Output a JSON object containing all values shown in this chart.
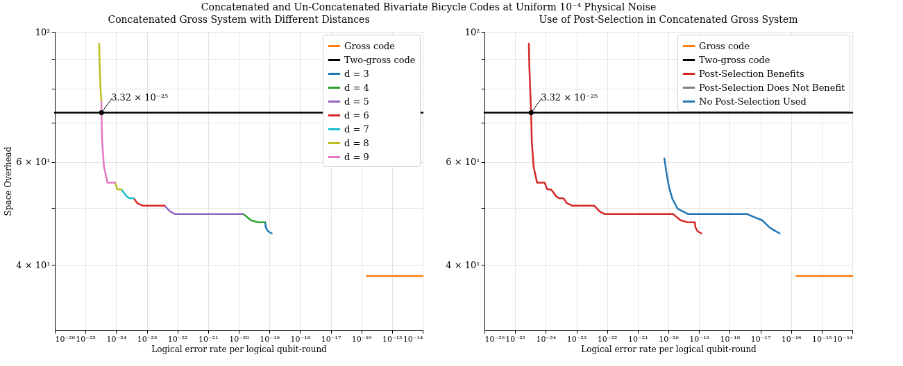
{
  "chart_data": [
    {
      "type": "line",
      "title": "Concatenated Gross System with Different Distances",
      "xlabel": "Logical error rate per logical qubit-round",
      "ylabel": "Space Overhead",
      "log": "xy",
      "grid": true,
      "legend": "top right",
      "xlim": [
        1e-26,
        1e-14
      ],
      "ylim": [
        31,
        100
      ],
      "xticks": [
        {
          "value": 1e-26,
          "label": "10⁻²⁶"
        },
        {
          "value": 1e-25,
          "label": "10⁻²⁵"
        },
        {
          "value": 1e-24,
          "label": "10⁻²⁴"
        },
        {
          "value": 1e-23,
          "label": "10⁻²³"
        },
        {
          "value": 1e-22,
          "label": "10⁻²²"
        },
        {
          "value": 1e-21,
          "label": "10⁻²¹"
        },
        {
          "value": 1e-20,
          "label": "10⁻²⁰"
        },
        {
          "value": 1e-19,
          "label": "10⁻¹⁹"
        },
        {
          "value": 1e-18,
          "label": "10⁻¹⁸"
        },
        {
          "value": 1e-17,
          "label": "10⁻¹⁷"
        },
        {
          "value": 1e-16,
          "label": "10⁻¹⁶"
        },
        {
          "value": 1e-15,
          "label": "10⁻¹⁵"
        },
        {
          "value": 1e-14,
          "label": "10⁻¹⁴"
        }
      ],
      "yticks": [
        {
          "value": 40,
          "label": "4 × 10¹"
        },
        {
          "value": 50,
          "label": null
        },
        {
          "value": 60,
          "label": "6 × 10¹"
        },
        {
          "value": 70,
          "label": null
        },
        {
          "value": 80,
          "label": null
        },
        {
          "value": 90,
          "label": null
        },
        {
          "value": 100,
          "label": "10²"
        }
      ],
      "series": [
        {
          "name": "Gross code",
          "color": "#ff7f0e",
          "x": [
            1.5e-16,
            1e-14
          ],
          "values": [
            38.3,
            38.3
          ]
        },
        {
          "name": "Two-gross code",
          "color": "#000000",
          "x": [
            1e-26,
            1e-14
          ],
          "values": [
            72.8,
            72.8
          ]
        },
        {
          "name": "d = 3",
          "color": "#1f77b4",
          "x": [
            7.3e-20,
            7.6e-20,
            8.9e-20,
            1.2e-19
          ],
          "values": [
            47.3,
            46.4,
            45.7,
            45.3
          ]
        },
        {
          "name": "d = 4",
          "color": "#2ca02c",
          "x": [
            1.4e-20,
            2.5e-20,
            4.4e-20,
            7.3e-20
          ],
          "values": [
            48.9,
            47.7,
            47.3,
            47.3
          ]
        },
        {
          "name": "d = 5",
          "color": "#9467bd",
          "x": [
            3.8e-23,
            5.7e-23,
            8.1e-23,
            1.4e-20
          ],
          "values": [
            50.5,
            49.4,
            48.9,
            48.9
          ]
        },
        {
          "name": "d = 6",
          "color": "#d62728",
          "x": [
            3.8e-24,
            4.9e-24,
            7.4e-24,
            3.8e-23
          ],
          "values": [
            52.0,
            51.0,
            50.5,
            50.5
          ]
        },
        {
          "name": "d = 7",
          "color": "#17becf",
          "x": [
            1.5e-24,
            2.2e-24,
            2.7e-24,
            3.8e-24
          ],
          "values": [
            53.8,
            52.4,
            52.0,
            52.0
          ]
        },
        {
          "name": "d = 8",
          "color": "#bcbd22",
          "x": [
            2.8e-25,
            2.9e-25,
            3.1e-25,
            3.32e-25,
            null,
            9.2e-25,
            1.1e-24,
            1.5e-24
          ],
          "values": [
            95.5,
            88.0,
            80.0,
            75.9,
            null,
            55.3,
            53.9,
            53.8
          ]
        },
        {
          "name": "d = 9",
          "color": "#e377c2",
          "x": [
            3.32e-25,
            3.32e-25,
            3.5e-25,
            4e-25,
            5.2e-25,
            9.2e-25
          ],
          "values": [
            75.9,
            72.8,
            65.0,
            58.9,
            55.3,
            55.3
          ]
        }
      ],
      "annotations": [
        "Concatenated and Un-Concatenated Bivariate Bicycle Codes at Uniform 10⁻⁴ Physical Noise",
        {
          "text": "3.32 × 10⁻²⁵",
          "x": 3.32e-25,
          "y": 72.8
        }
      ]
    },
    {
      "type": "line",
      "title": "Use of Post-Selection in Concatenated Gross System",
      "xlabel": "Logical error rate per logical qubit-round",
      "log": "xy",
      "grid": true,
      "legend": "top right",
      "xlim": [
        1e-26,
        1e-14
      ],
      "ylim": [
        31,
        100
      ],
      "xticks": [
        {
          "value": 1e-26,
          "label": "10⁻²⁶"
        },
        {
          "value": 1e-25,
          "label": "10⁻²⁵"
        },
        {
          "value": 1e-24,
          "label": "10⁻²⁴"
        },
        {
          "value": 1e-23,
          "label": "10⁻²³"
        },
        {
          "value": 1e-22,
          "label": "10⁻²²"
        },
        {
          "value": 1e-21,
          "label": "10⁻²¹"
        },
        {
          "value": 1e-20,
          "label": "10⁻²⁰"
        },
        {
          "value": 1e-19,
          "label": "10⁻¹⁹"
        },
        {
          "value": 1e-18,
          "label": "10⁻¹⁸"
        },
        {
          "value": 1e-17,
          "label": "10⁻¹⁷"
        },
        {
          "value": 1e-16,
          "label": "10⁻¹⁶"
        },
        {
          "value": 1e-15,
          "label": "10⁻¹⁵"
        },
        {
          "value": 1e-14,
          "label": "10⁻¹⁴"
        }
      ],
      "yticks": [
        {
          "value": 40,
          "label": "4 × 10¹"
        },
        {
          "value": 50,
          "label": null
        },
        {
          "value": 60,
          "label": "6 × 10¹"
        },
        {
          "value": 70,
          "label": null
        },
        {
          "value": 80,
          "label": null
        },
        {
          "value": 90,
          "label": null
        },
        {
          "value": 100,
          "label": "10²"
        }
      ],
      "series": [
        {
          "name": "Gross code",
          "color": "#ff7f0e",
          "x": [
            1.5e-16,
            1e-14
          ],
          "values": [
            38.3,
            38.3
          ]
        },
        {
          "name": "Two-gross code",
          "color": "#000000",
          "x": [
            1e-26,
            1e-14
          ],
          "values": [
            72.8,
            72.8
          ]
        },
        {
          "name": "Post-Selection Benefits",
          "color": "#d62728",
          "x": [
            2.8e-25,
            2.9e-25,
            3.1e-25,
            3.32e-25,
            3.5e-25,
            4e-25,
            5.2e-25,
            9.2e-25,
            1.1e-24,
            1.5e-24,
            2.2e-24,
            2.7e-24,
            3.8e-24,
            4.9e-24,
            7.4e-24,
            3.8e-23,
            5.7e-23,
            8.1e-23,
            1.4e-20,
            2.5e-20,
            4.4e-20,
            7.3e-20,
            7.6e-20,
            8.9e-20,
            1.2e-19
          ],
          "values": [
            95.5,
            88.0,
            80.0,
            72.8,
            65.0,
            58.9,
            55.3,
            55.3,
            53.9,
            53.8,
            52.4,
            52.0,
            52.0,
            51.0,
            50.5,
            50.5,
            49.4,
            48.9,
            48.9,
            47.7,
            47.3,
            47.3,
            46.4,
            45.7,
            45.3
          ]
        },
        {
          "name": "Post-Selection Does Not Benefit",
          "color": "#7f7f7f"
        },
        {
          "name": "No Post-Selection Used",
          "color": "#1f77b4",
          "x": [
            7.4e-21,
            8.5e-21,
            1.05e-20,
            1.35e-20,
            2e-20,
            4.3e-20,
            3.6e-18,
            6.2e-18,
            1.15e-17,
            1.97e-17,
            2.7e-17,
            4.3e-17
          ],
          "values": [
            60.8,
            57.8,
            54.3,
            51.9,
            49.9,
            48.9,
            48.9,
            48.3,
            47.7,
            46.4,
            45.9,
            45.3
          ]
        }
      ],
      "annotations": [
        {
          "text": "3.32 × 10⁻²⁵",
          "x": 3.32e-25,
          "y": 72.8
        }
      ]
    }
  ]
}
